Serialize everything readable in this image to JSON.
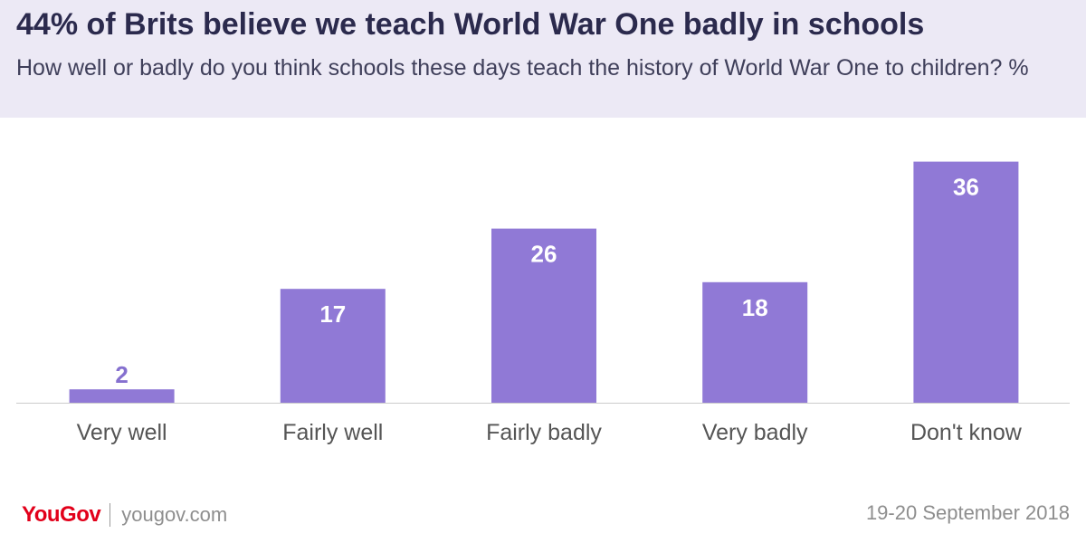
{
  "header": {
    "title": "44% of Brits believe we teach World War One badly in schools",
    "subtitle": "How well or badly do you think schools these days teach the history of World War One to children? %"
  },
  "chart_data": {
    "type": "bar",
    "categories": [
      "Very well",
      "Fairly well",
      "Fairly badly",
      "Very badly",
      "Don't know"
    ],
    "values": [
      2,
      17,
      26,
      18,
      36
    ],
    "ylim": [
      0,
      40
    ],
    "grid": false,
    "colors": {
      "bar": "#9079d6",
      "label_inside": "#ffffff",
      "label_outside": "#8570cf",
      "axis": "#cccccc",
      "tick_label": "#555555"
    }
  },
  "footer": {
    "logo": "YouGov",
    "website": "yougov.com",
    "date": "19-20 September 2018"
  }
}
